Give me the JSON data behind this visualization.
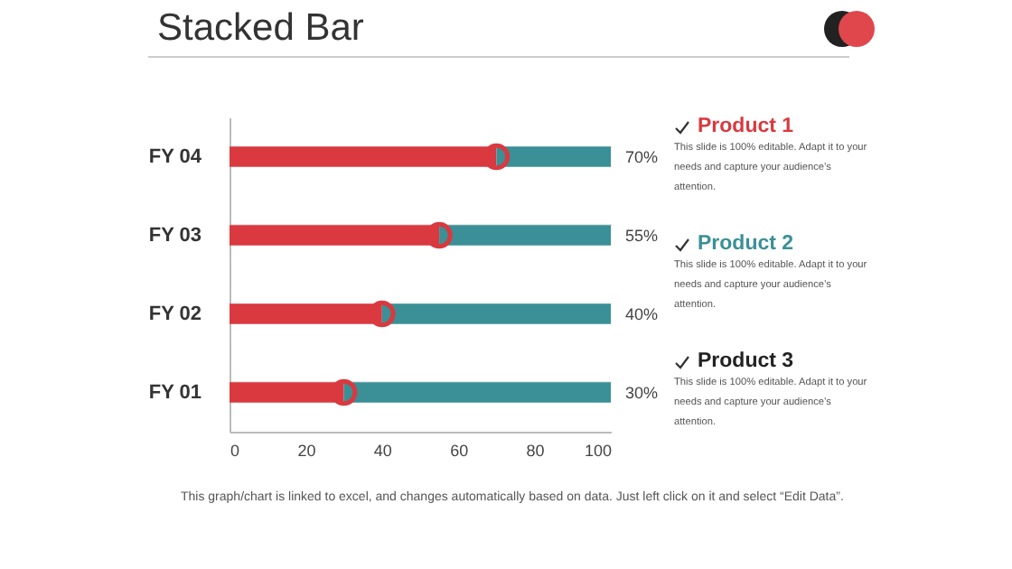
{
  "chart_data": {
    "type": "bar",
    "orientation": "horizontal",
    "stacked": true,
    "title": "Stacked Bar",
    "categories": [
      "FY  04",
      "FY  03",
      "FY  02",
      "FY  01"
    ],
    "series": [
      {
        "color": "#d9393f",
        "values": [
          70,
          55,
          40,
          30
        ],
        "value_labels": [
          "70%",
          "55%",
          "40%",
          "30%"
        ]
      },
      {
        "color": "#3a9096",
        "values": [
          30,
          45,
          60,
          70
        ]
      }
    ],
    "xlim": [
      0,
      100
    ],
    "xticks": [
      0,
      20,
      40,
      60,
      80,
      100
    ],
    "grid": "y",
    "marker": "circle",
    "annotations": [
      "Product 1",
      "This slide is 100% editable. Adapt it to your needs and capture your audience’s attention.",
      "Product 2",
      "This slide is 100% editable. Adapt it to your needs and capture your audience’s attention.",
      "Product 3",
      "This slide is 100% editable. Adapt it to your needs and capture your audience’s attention.",
      "This graph/chart is linked to excel, and changes automatically  based on data. Just left click on it and select “Edit Data”."
    ]
  }
}
